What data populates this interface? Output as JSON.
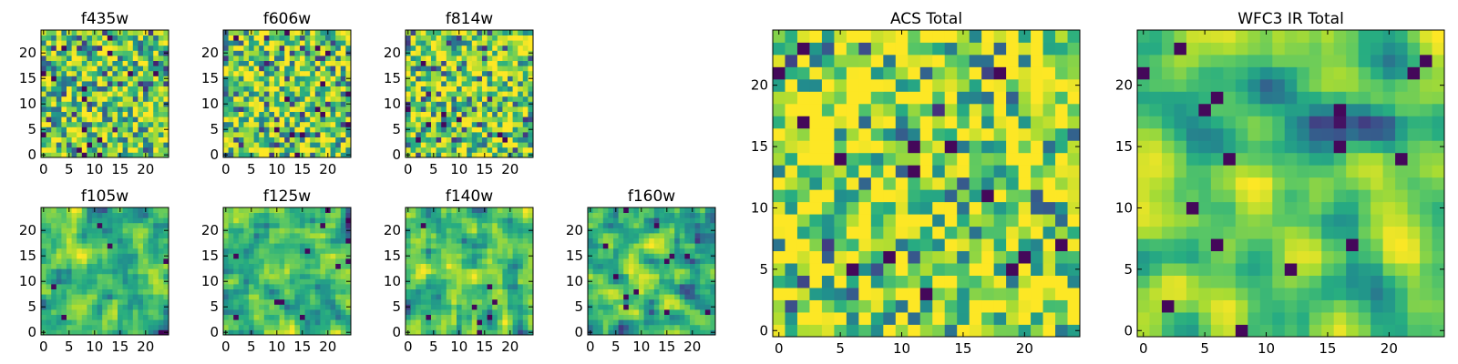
{
  "chart_data": [
    {
      "type": "heatmap",
      "title": "f435w",
      "xticks": [
        0,
        5,
        10,
        15,
        20
      ],
      "yticks": [
        0,
        5,
        10,
        15,
        20
      ],
      "xlim": [
        0,
        24
      ],
      "ylim": [
        0,
        24
      ],
      "grid_size": 25,
      "colormap": "viridis",
      "smooth": 0,
      "seed": 11,
      "bias": 0.1
    },
    {
      "type": "heatmap",
      "title": "f606w",
      "xticks": [
        0,
        5,
        10,
        15,
        20
      ],
      "yticks": [
        0,
        5,
        10,
        15,
        20
      ],
      "xlim": [
        0,
        24
      ],
      "ylim": [
        0,
        24
      ],
      "grid_size": 25,
      "colormap": "viridis",
      "smooth": 0,
      "seed": 23,
      "bias": 0.1
    },
    {
      "type": "heatmap",
      "title": "f814w",
      "xticks": [
        0,
        5,
        10,
        15,
        20
      ],
      "yticks": [
        0,
        5,
        10,
        15,
        20
      ],
      "xlim": [
        0,
        24
      ],
      "ylim": [
        0,
        24
      ],
      "grid_size": 25,
      "colormap": "viridis",
      "smooth": 0,
      "seed": 37,
      "bias": 0.1
    },
    {
      "type": "heatmap",
      "title": "f105w",
      "xticks": [
        0,
        5,
        10,
        15,
        20
      ],
      "yticks": [
        0,
        5,
        10,
        15,
        20
      ],
      "xlim": [
        0,
        24
      ],
      "ylim": [
        0,
        24
      ],
      "grid_size": 25,
      "colormap": "viridis",
      "smooth": 1,
      "seed": 41,
      "bias": 0.0
    },
    {
      "type": "heatmap",
      "title": "f125w",
      "xticks": [
        0,
        5,
        10,
        15,
        20
      ],
      "yticks": [
        0,
        5,
        10,
        15,
        20
      ],
      "xlim": [
        0,
        24
      ],
      "ylim": [
        0,
        24
      ],
      "grid_size": 25,
      "colormap": "viridis",
      "smooth": 1,
      "seed": 53,
      "bias": 0.0
    },
    {
      "type": "heatmap",
      "title": "f140w",
      "xticks": [
        0,
        5,
        10,
        15,
        20
      ],
      "yticks": [
        0,
        5,
        10,
        15,
        20
      ],
      "xlim": [
        0,
        24
      ],
      "ylim": [
        0,
        24
      ],
      "grid_size": 25,
      "colormap": "viridis",
      "smooth": 1,
      "seed": 67,
      "bias": 0.0
    },
    {
      "type": "heatmap",
      "title": "f160w",
      "xticks": [
        0,
        5,
        10,
        15,
        20
      ],
      "yticks": [
        0,
        5,
        10,
        15,
        20
      ],
      "xlim": [
        0,
        24
      ],
      "ylim": [
        0,
        24
      ],
      "grid_size": 25,
      "colormap": "viridis",
      "smooth": 1,
      "seed": 71,
      "bias": 0.0
    },
    {
      "type": "heatmap",
      "title": "ACS Total",
      "xticks": [
        0,
        5,
        10,
        15,
        20
      ],
      "yticks": [
        0,
        5,
        10,
        15,
        20
      ],
      "xlim": [
        0,
        24
      ],
      "ylim": [
        0,
        24
      ],
      "grid_size": 25,
      "colormap": "viridis",
      "smooth": 0,
      "seed": 83,
      "bias": 0.15
    },
    {
      "type": "heatmap",
      "title": "WFC3 IR Total",
      "xticks": [
        0,
        5,
        10,
        15,
        20
      ],
      "yticks": [
        0,
        5,
        10,
        15,
        20
      ],
      "xlim": [
        0,
        24
      ],
      "ylim": [
        0,
        24
      ],
      "grid_size": 25,
      "colormap": "viridis",
      "smooth": 2,
      "seed": 97,
      "bias": 0.05
    }
  ]
}
